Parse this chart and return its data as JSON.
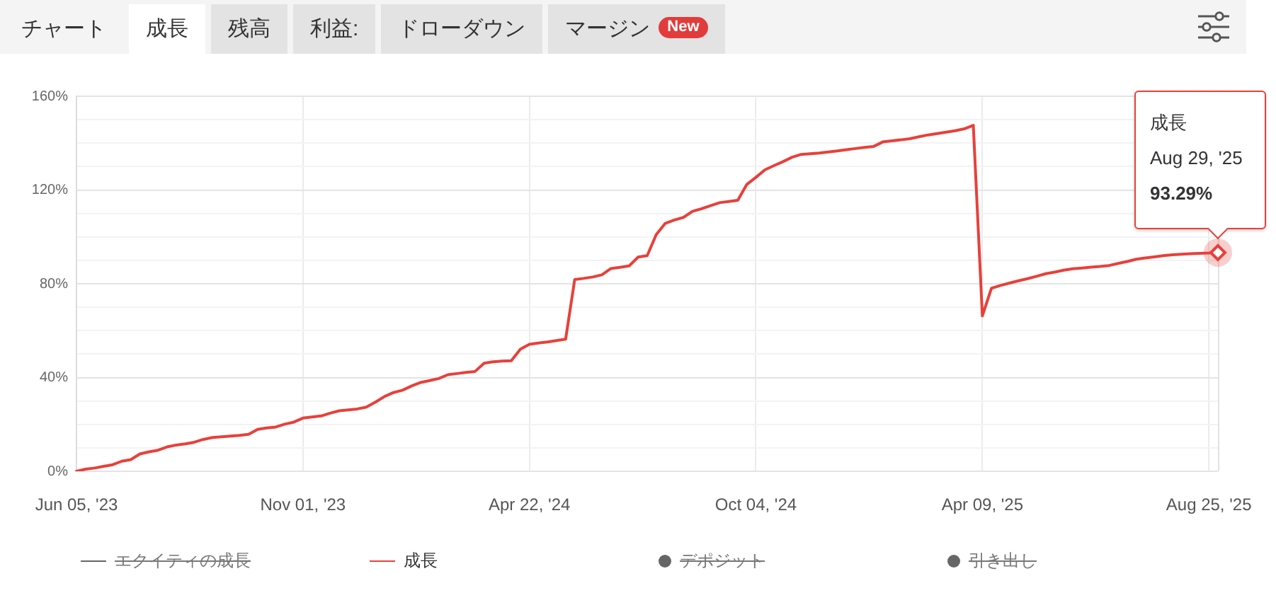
{
  "chart_data": {
    "type": "line",
    "categories": [
      "Jun 05, '23",
      null,
      null,
      null,
      null,
      null,
      null,
      null,
      null,
      null,
      null,
      null,
      null,
      null,
      null,
      null,
      null,
      null,
      null,
      null,
      null,
      null,
      null,
      null,
      null,
      "Nov 01, '23",
      null,
      null,
      null,
      null,
      null,
      null,
      null,
      null,
      null,
      null,
      null,
      null,
      null,
      null,
      null,
      null,
      null,
      null,
      null,
      null,
      null,
      null,
      null,
      null,
      "Apr 22, '24",
      null,
      null,
      null,
      null,
      null,
      null,
      null,
      null,
      null,
      null,
      null,
      null,
      null,
      null,
      null,
      null,
      null,
      null,
      null,
      null,
      null,
      null,
      null,
      null,
      "Oct 04, '24",
      null,
      null,
      null,
      null,
      null,
      null,
      null,
      null,
      null,
      null,
      null,
      null,
      null,
      null,
      null,
      null,
      null,
      null,
      null,
      null,
      null,
      null,
      null,
      null,
      "Apr 09, '25",
      null,
      null,
      null,
      null,
      null,
      null,
      null,
      null,
      null,
      null,
      null,
      null,
      null,
      null,
      null,
      null,
      null,
      null,
      null,
      null,
      null,
      null,
      null,
      null,
      "Aug 25, '25",
      null
    ],
    "series": [
      {
        "name": "エクイティの成長",
        "color": "#666666",
        "values": [
          null,
          null,
          null,
          null,
          null,
          null,
          null,
          null,
          null,
          null,
          null,
          null,
          null,
          null,
          null,
          null,
          null,
          null,
          null,
          null,
          null,
          null,
          null,
          null,
          null,
          null,
          null,
          null,
          null,
          null,
          null,
          null,
          null,
          null,
          null,
          null,
          null,
          null,
          null,
          null,
          null,
          null,
          null,
          null,
          null,
          null,
          null,
          null,
          null,
          null,
          null,
          null,
          null,
          null,
          null,
          null,
          null,
          null,
          null,
          null,
          null,
          null,
          null,
          null,
          null,
          null,
          null,
          null,
          null,
          null,
          null,
          null,
          null,
          null,
          null,
          null,
          null,
          null,
          null,
          null,
          null,
          null,
          null,
          null,
          null,
          null,
          null,
          null,
          null,
          null,
          null,
          null,
          null,
          null,
          null,
          null,
          null,
          null,
          null,
          null,
          null,
          null,
          null,
          null,
          null,
          null,
          null,
          null,
          null,
          null,
          null,
          null,
          null,
          null,
          null,
          null,
          null,
          null,
          null,
          null,
          null,
          null,
          null,
          null,
          null,
          null,
          null
        ]
      },
      {
        "name": "成長",
        "color": "#e8403a",
        "values": [
          0,
          0.9,
          1.4,
          2.1,
          2.8,
          4.3,
          5,
          7.4,
          8.3,
          9,
          10.4,
          11.2,
          11.7,
          12.4,
          13.6,
          14.4,
          14.7,
          15,
          15.3,
          15.8,
          17.9,
          18.5,
          18.9,
          20.1,
          21,
          22.7,
          23.2,
          23.6,
          24.8,
          25.8,
          26.2,
          26.6,
          27.4,
          29.5,
          31.9,
          33.6,
          34.6,
          36.4,
          37.9,
          38.7,
          39.6,
          41.2,
          41.7,
          42.2,
          42.6,
          46.1,
          46.7,
          47,
          47.2,
          52.1,
          54.2,
          54.7,
          55.2,
          55.8,
          56.4,
          81.8,
          82.3,
          82.9,
          83.8,
          86.5,
          87,
          87.6,
          91.4,
          92,
          101,
          105.8,
          107.2,
          108.3,
          110.9,
          112,
          113.3,
          114.6,
          115.1,
          115.6,
          122.4,
          125.4,
          128.6,
          130.4,
          132.1,
          134,
          135.2,
          135.5,
          135.8,
          136.2,
          136.7,
          137.2,
          137.7,
          138.2,
          138.6,
          140.5,
          141,
          141.4,
          141.9,
          142.7,
          143.5,
          144.1,
          144.7,
          145.3,
          146.1,
          147.6,
          66.3,
          78.1,
          79.3,
          80.3,
          81.3,
          82.2,
          83.2,
          84.3,
          85,
          85.8,
          86.4,
          86.7,
          87.1,
          87.4,
          87.8,
          88.7,
          89.5,
          90.5,
          91,
          91.5,
          92,
          92.4,
          92.6,
          92.8,
          93,
          93.1,
          93.29
        ]
      },
      {
        "name": "デポジット",
        "type": "scatter",
        "color": "#666666",
        "values": [
          null,
          null,
          null,
          null,
          null,
          null,
          null,
          null,
          null,
          null,
          null,
          null,
          null,
          null,
          null,
          null,
          null,
          null,
          null,
          null,
          null,
          null,
          null,
          null,
          null,
          null,
          null,
          null,
          null,
          null,
          null,
          null,
          null,
          null,
          null,
          null,
          null,
          null,
          null,
          null,
          null,
          null,
          null,
          null,
          null,
          null,
          null,
          null,
          null,
          null,
          null,
          null,
          null,
          null,
          null,
          null,
          null,
          null,
          null,
          null,
          null,
          null,
          null,
          null,
          null,
          null,
          null,
          null,
          null,
          null,
          null,
          null,
          null,
          null,
          null,
          null,
          null,
          null,
          null,
          null,
          null,
          null,
          null,
          null,
          null,
          null,
          null,
          null,
          null,
          null,
          null,
          null,
          null,
          null,
          null,
          null,
          null,
          null,
          null,
          null,
          null,
          null,
          null,
          null,
          null,
          null,
          null,
          null,
          null,
          null,
          null,
          null,
          null,
          null,
          null,
          null,
          null,
          null,
          null,
          null,
          null,
          null,
          null,
          null,
          null,
          null,
          null
        ]
      },
      {
        "name": "引き出し",
        "type": "scatter",
        "color": "#666666",
        "values": [
          null,
          null,
          null,
          null,
          null,
          null,
          null,
          null,
          null,
          null,
          null,
          null,
          null,
          null,
          null,
          null,
          null,
          null,
          null,
          null,
          null,
          null,
          null,
          null,
          null,
          null,
          null,
          null,
          null,
          null,
          null,
          null,
          null,
          null,
          null,
          null,
          null,
          null,
          null,
          null,
          null,
          null,
          null,
          null,
          null,
          null,
          null,
          null,
          null,
          null,
          null,
          null,
          null,
          null,
          null,
          null,
          null,
          null,
          null,
          null,
          null,
          null,
          null,
          null,
          null,
          null,
          null,
          null,
          null,
          null,
          null,
          null,
          null,
          null,
          null,
          null,
          null,
          null,
          null,
          null,
          null,
          null,
          null,
          null,
          null,
          null,
          null,
          null,
          null,
          null,
          null,
          null,
          null,
          null,
          null,
          null,
          null,
          null,
          null,
          null,
          null,
          null,
          null,
          null,
          null,
          null,
          null,
          null,
          null,
          null,
          null,
          null,
          null,
          null,
          null,
          null,
          null,
          null,
          null,
          null,
          null,
          null,
          null,
          null,
          null,
          null,
          null
        ]
      }
    ],
    "ylim": [
      0,
      160
    ],
    "yticks": [
      {
        "value": 0,
        "label": "0%"
      },
      {
        "value": 10,
        "label": null
      },
      {
        "value": 20,
        "label": null
      },
      {
        "value": 30,
        "label": null
      },
      {
        "value": 40,
        "label": "40%"
      },
      {
        "value": 50,
        "label": null
      },
      {
        "value": 60,
        "label": null
      },
      {
        "value": 70,
        "label": null
      },
      {
        "value": 80,
        "label": "80%"
      },
      {
        "value": 90,
        "label": null
      },
      {
        "value": 100,
        "label": null
      },
      {
        "value": 110,
        "label": null
      },
      {
        "value": 120,
        "label": "120%"
      },
      {
        "value": 130,
        "label": null
      },
      {
        "value": 140,
        "label": null
      },
      {
        "value": 150,
        "label": null
      },
      {
        "value": 160,
        "label": "160%"
      }
    ],
    "grid": true,
    "legend": "bottom",
    "annotations": [
      "チャート",
      "成長",
      "残高",
      "利益:",
      "ドローダウン",
      "マージン",
      "New",
      "成長",
      "Aug 29, '25",
      {
        "text": "93.29%",
        "y": 93.29
      }
    ]
  }
}
